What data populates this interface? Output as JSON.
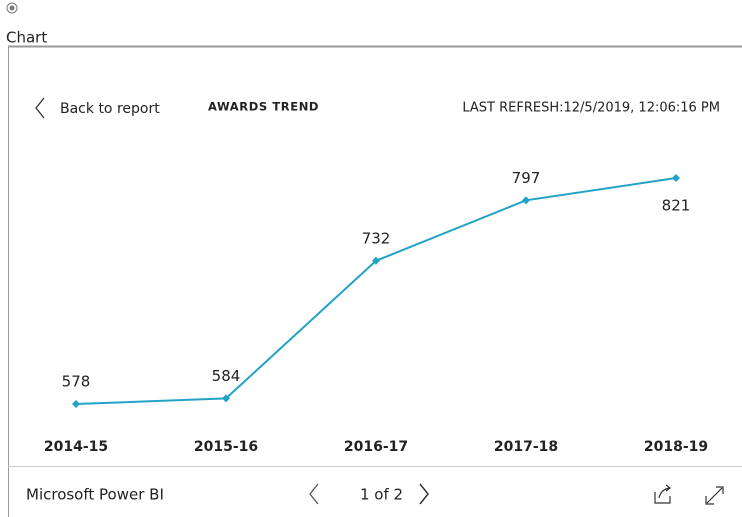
{
  "header": {
    "label": "Chart"
  },
  "report": {
    "back": "Back to report",
    "refresh": "LAST REFRESH:12/5/2019, 12:06:16 PM"
  },
  "chart_data": {
    "type": "line",
    "title": "AWARDS TREND",
    "categories": [
      "2014-15",
      "2015-16",
      "2016-17",
      "2017-18",
      "2018-19"
    ],
    "values": [
      578,
      584,
      732,
      797,
      821
    ],
    "color": "#22a3c6"
  },
  "footer": {
    "brand": "Microsoft Power BI",
    "pager": "1 of 2"
  }
}
